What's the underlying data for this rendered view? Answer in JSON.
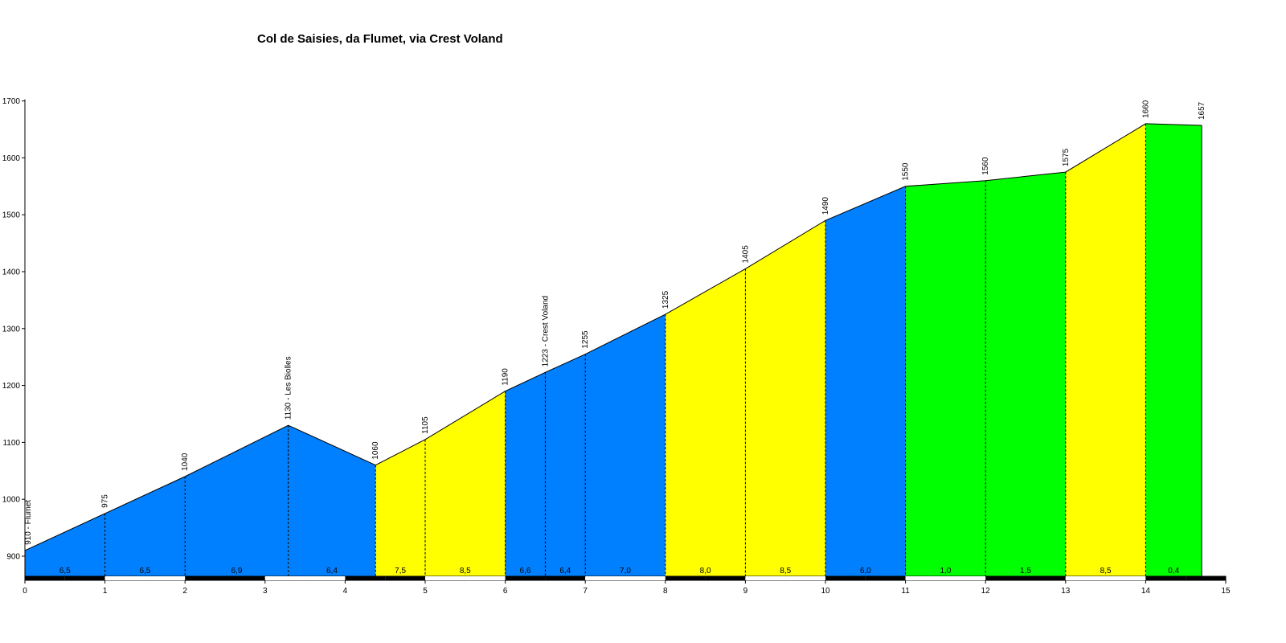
{
  "chart_data": {
    "type": "area",
    "title": "Col de Saisies, da Flumet, via Crest Voland",
    "xlabel": "",
    "ylabel": "",
    "xlim": [
      0,
      15
    ],
    "ylim": [
      860,
      1700
    ],
    "x_ticks": [
      "0",
      "1",
      "2",
      "3",
      "4",
      "5",
      "6",
      "7",
      "8",
      "9",
      "10",
      "11",
      "12",
      "13",
      "14",
      "15"
    ],
    "y_ticks": [
      "900",
      "1000",
      "1100",
      "1200",
      "1300",
      "1400",
      "1500",
      "1600",
      "1700"
    ],
    "profile": [
      {
        "x": 0,
        "y": 910,
        "label": "910 - Flumet"
      },
      {
        "x": 1,
        "y": 975,
        "label": "975"
      },
      {
        "x": 2,
        "y": 1040,
        "label": "1040"
      },
      {
        "x": 3.29,
        "y": 1130,
        "label": "1130 - Les Biolles"
      },
      {
        "x": 4.38,
        "y": 1060,
        "label": "1060"
      },
      {
        "x": 5,
        "y": 1105,
        "label": "1105"
      },
      {
        "x": 6,
        "y": 1190,
        "label": "1190"
      },
      {
        "x": 6.5,
        "y": 1223,
        "label": "1223 - Crest Voland"
      },
      {
        "x": 7,
        "y": 1255,
        "label": "1255"
      },
      {
        "x": 8,
        "y": 1325,
        "label": "1325"
      },
      {
        "x": 9,
        "y": 1405,
        "label": "1405"
      },
      {
        "x": 10,
        "y": 1490,
        "label": "1490"
      },
      {
        "x": 11,
        "y": 1550,
        "label": "1550"
      },
      {
        "x": 12,
        "y": 1560,
        "label": "1560"
      },
      {
        "x": 13,
        "y": 1575,
        "label": "1575"
      },
      {
        "x": 14,
        "y": 1660,
        "label": "1660"
      },
      {
        "x": 14.7,
        "y": 1657,
        "label": "1657"
      }
    ],
    "gradients": [
      "6,5",
      "6,5",
      "6,9",
      "6,4",
      "7,5",
      "8,5",
      "6,6",
      "6,4",
      "7,0",
      "8,0",
      "8,5",
      "6,0",
      "1,0",
      "1,5",
      "8,5",
      "0,4"
    ],
    "segment_colors": [
      "#0080ff",
      "#0080ff",
      "#0080ff",
      "#0080ff",
      "#ffff00",
      "#ffff00",
      "#0080ff",
      "#0080ff",
      "#0080ff",
      "#ffff00",
      "#ffff00",
      "#0080ff",
      "#00ff00",
      "#00ff00",
      "#ffff00",
      "#00ff00"
    ],
    "grid": false,
    "legend": "none"
  }
}
